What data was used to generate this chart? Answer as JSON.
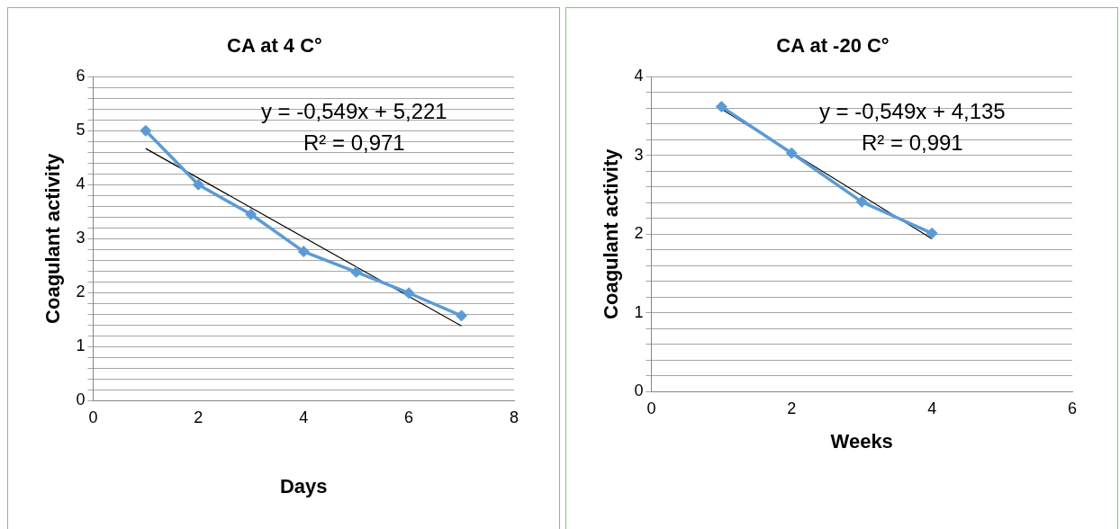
{
  "chart_data": [
    {
      "type": "line",
      "title": "CA at 4 C°",
      "xlabel": "Days",
      "ylabel": "Coagulant activity",
      "xlim": [
        0,
        8
      ],
      "xticks": [
        0,
        2,
        4,
        6,
        8
      ],
      "ylim": [
        0,
        6
      ],
      "yticks": [
        0,
        {
          "value": 0.2,
          "label": null
        },
        {
          "value": 0.4,
          "label": null
        },
        {
          "value": 0.6,
          "label": null
        },
        {
          "value": 0.8,
          "label": null
        },
        1,
        {
          "value": 1.2,
          "label": null
        },
        {
          "value": 1.4,
          "label": null
        },
        {
          "value": 1.6,
          "label": null
        },
        {
          "value": 1.8,
          "label": null
        },
        2,
        {
          "value": 2.2,
          "label": null
        },
        {
          "value": 2.4,
          "label": null
        },
        {
          "value": 2.6,
          "label": null
        },
        {
          "value": 2.8,
          "label": null
        },
        3,
        {
          "value": 3.2,
          "label": null
        },
        {
          "value": 3.4,
          "label": null
        },
        {
          "value": 3.6,
          "label": null
        },
        {
          "value": 3.8,
          "label": null
        },
        4,
        {
          "value": 4.2,
          "label": null
        },
        {
          "value": 4.4,
          "label": null
        },
        {
          "value": 4.6,
          "label": null
        },
        {
          "value": 4.8,
          "label": null
        },
        5,
        {
          "value": 5.2,
          "label": null
        },
        {
          "value": 5.4,
          "label": null
        },
        {
          "value": 5.6,
          "label": null
        },
        {
          "value": 5.8,
          "label": null
        },
        6
      ],
      "grid": "y",
      "marker": "diamond",
      "annotations": [
        "y = -0,549x + 5,221",
        "R² = 0,971"
      ],
      "series": [
        {
          "color": "#5b9bd5",
          "x": [
            1,
            2,
            3,
            4,
            5,
            6,
            7
          ],
          "values": [
            5.0,
            4.0,
            3.45,
            2.76,
            2.38,
            1.99,
            1.57
          ]
        },
        {
          "type": "line",
          "marker": "none",
          "color": "#000000",
          "x": [
            1,
            7
          ],
          "values": [
            4.67,
            1.38
          ]
        }
      ]
    },
    {
      "type": "line",
      "title": "CA at -20 C°",
      "xlabel": "Weeks",
      "ylabel": "Coagulant activity",
      "xlim": [
        0,
        6
      ],
      "xticks": [
        0,
        2,
        4,
        6
      ],
      "ylim": [
        0,
        4
      ],
      "yticks": [
        0,
        {
          "value": 0.2,
          "label": null
        },
        {
          "value": 0.4,
          "label": null
        },
        {
          "value": 0.6,
          "label": null
        },
        {
          "value": 0.8,
          "label": null
        },
        1,
        {
          "value": 1.2,
          "label": null
        },
        {
          "value": 1.4,
          "label": null
        },
        {
          "value": 1.6,
          "label": null
        },
        {
          "value": 1.8,
          "label": null
        },
        2,
        {
          "value": 2.2,
          "label": null
        },
        {
          "value": 2.4,
          "label": null
        },
        {
          "value": 2.6,
          "label": null
        },
        {
          "value": 2.8,
          "label": null
        },
        3,
        {
          "value": 3.2,
          "label": null
        },
        {
          "value": 3.4,
          "label": null
        },
        {
          "value": 3.6,
          "label": null
        },
        {
          "value": 3.8,
          "label": null
        },
        4
      ],
      "grid": "y",
      "marker": "diamond",
      "annotations": [
        "y = -0,549x + 4,135",
        "R² = 0,991"
      ],
      "series": [
        {
          "color": "#5b9bd5",
          "x": [
            1,
            2,
            3,
            4
          ],
          "values": [
            3.62,
            3.03,
            2.41,
            2.01
          ]
        },
        {
          "type": "line",
          "marker": "none",
          "color": "#000000",
          "x": [
            1,
            4
          ],
          "values": [
            3.59,
            1.94
          ]
        }
      ]
    }
  ]
}
